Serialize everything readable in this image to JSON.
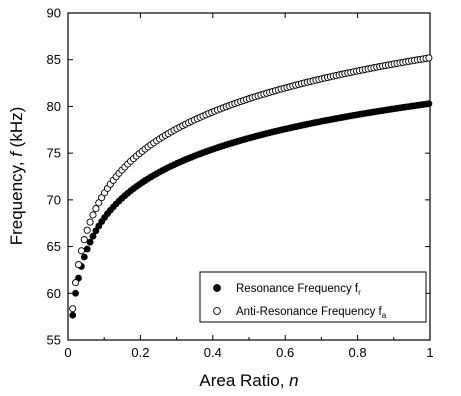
{
  "chart_data": {
    "type": "scatter",
    "xlabel": "Area Ratio,",
    "xlabel_italic": "n",
    "ylabel": "Frequency,",
    "ylabel_italic": "f",
    "ylabel_unit": "(kHz)",
    "xlim": [
      0,
      1
    ],
    "ylim": [
      55,
      90
    ],
    "x_ticks": [
      "0",
      "0.2",
      "0.4",
      "0.6",
      "0.8",
      "1"
    ],
    "x_tick_values": [
      0,
      0.2,
      0.4,
      0.6,
      0.8,
      1
    ],
    "y_ticks": [
      "55",
      "60",
      "65",
      "70",
      "75",
      "80",
      "85",
      "90"
    ],
    "y_tick_values": [
      55,
      60,
      65,
      70,
      75,
      80,
      85,
      90
    ],
    "grid": false,
    "legend_position": "bottom-right",
    "series": [
      {
        "name": "Resonance Frequency f",
        "subscript": "r",
        "marker": "filled-circle",
        "color": "#000000",
        "model": {
          "a": 80.3,
          "b": 5.35,
          "c": 0.0015
        },
        "x_start": 0.005,
        "x_end": 1.0,
        "x_step": 0.008
      },
      {
        "name": "Anti-Resonance Frequency f",
        "subscript": "a",
        "marker": "open-circle",
        "color": "#000000",
        "model": {
          "a": 85.2,
          "b": 6.34,
          "c": 0.0015
        },
        "x_start": 0.005,
        "x_end": 1.0,
        "x_step": 0.008
      }
    ]
  }
}
